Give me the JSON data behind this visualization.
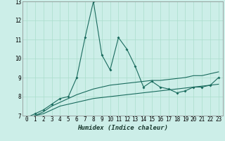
{
  "xlabel": "Humidex (Indice chaleur)",
  "ylabel": "",
  "xlim": [
    -0.5,
    23.5
  ],
  "ylim": [
    7,
    13
  ],
  "yticks": [
    7,
    8,
    9,
    10,
    11,
    12,
    13
  ],
  "xticks": [
    0,
    1,
    2,
    3,
    4,
    5,
    6,
    7,
    8,
    9,
    10,
    11,
    12,
    13,
    14,
    15,
    16,
    17,
    18,
    19,
    20,
    21,
    22,
    23
  ],
  "bg_color": "#cceee8",
  "line_color": "#1a6b5e",
  "grid_color": "#aaddcc",
  "line1_x": [
    0,
    1,
    2,
    3,
    4,
    5,
    6,
    7,
    8,
    9,
    10,
    11,
    12,
    13,
    14,
    15,
    16,
    17,
    18,
    19,
    20,
    21,
    22,
    23
  ],
  "line1_y": [
    6.9,
    7.1,
    7.3,
    7.6,
    7.9,
    8.0,
    9.0,
    11.1,
    13.0,
    10.2,
    9.4,
    11.1,
    10.5,
    9.6,
    8.5,
    8.8,
    8.5,
    8.4,
    8.2,
    8.3,
    8.5,
    8.5,
    8.6,
    9.0
  ],
  "line2_x": [
    0,
    1,
    2,
    3,
    4,
    5,
    6,
    7,
    8,
    9,
    10,
    11,
    12,
    13,
    14,
    15,
    16,
    17,
    18,
    19,
    20,
    21,
    22,
    23
  ],
  "line2_y": [
    6.9,
    7.0,
    7.2,
    7.5,
    7.7,
    7.9,
    8.1,
    8.25,
    8.4,
    8.5,
    8.6,
    8.65,
    8.7,
    8.75,
    8.8,
    8.85,
    8.85,
    8.9,
    8.95,
    9.0,
    9.1,
    9.1,
    9.2,
    9.3
  ],
  "line3_x": [
    0,
    1,
    2,
    3,
    4,
    5,
    6,
    7,
    8,
    9,
    10,
    11,
    12,
    13,
    14,
    15,
    16,
    17,
    18,
    19,
    20,
    21,
    22,
    23
  ],
  "line3_y": [
    6.9,
    7.0,
    7.1,
    7.3,
    7.5,
    7.6,
    7.7,
    7.8,
    7.9,
    7.95,
    8.0,
    8.05,
    8.1,
    8.15,
    8.2,
    8.25,
    8.3,
    8.35,
    8.4,
    8.45,
    8.5,
    8.55,
    8.6,
    8.65
  ],
  "tick_fontsize": 5.5,
  "xlabel_fontsize": 6.5
}
